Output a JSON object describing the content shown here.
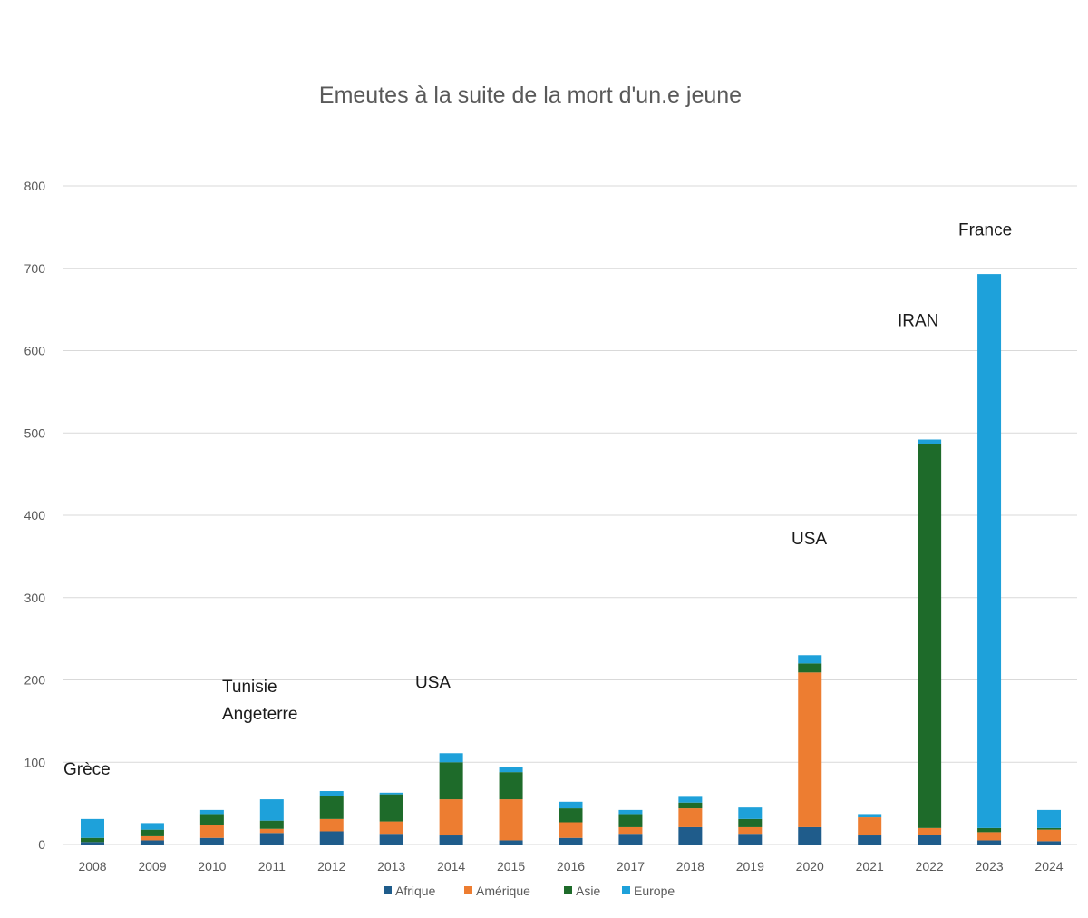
{
  "chart_data": {
    "type": "bar",
    "stacked": true,
    "title": "Emeutes à la suite de la mort d'un.e jeune",
    "xlabel": "",
    "ylabel": "",
    "ylim": [
      0,
      800
    ],
    "yticks": [
      0,
      100,
      200,
      300,
      400,
      500,
      600,
      700,
      800
    ],
    "grid": true,
    "legend_position": "bottom",
    "categories": [
      "2008",
      "2009",
      "2010",
      "2011",
      "2012",
      "2013",
      "2014",
      "2015",
      "2016",
      "2017",
      "2018",
      "2019",
      "2020",
      "2021",
      "2022",
      "2023",
      "2024"
    ],
    "series": [
      {
        "name": "Afrique",
        "color": "#1f5c8b",
        "values": [
          3,
          5,
          8,
          14,
          16,
          13,
          11,
          5,
          8,
          13,
          21,
          13,
          21,
          11,
          12,
          5,
          4
        ]
      },
      {
        "name": "Amérique",
        "color": "#ed7d31",
        "values": [
          0,
          5,
          16,
          5,
          15,
          15,
          44,
          50,
          19,
          8,
          23,
          8,
          188,
          22,
          8,
          10,
          14
        ]
      },
      {
        "name": "Asie",
        "color": "#1e6b2a",
        "values": [
          5,
          8,
          13,
          10,
          28,
          33,
          45,
          33,
          17,
          16,
          7,
          10,
          11,
          0,
          467,
          5,
          2
        ]
      },
      {
        "name": "Europe",
        "color": "#1ea1da",
        "values": [
          23,
          8,
          5,
          26,
          6,
          2,
          11,
          6,
          8,
          5,
          7,
          14,
          10,
          4,
          5,
          673,
          22
        ]
      }
    ],
    "annotations": [
      {
        "category": "2008",
        "lines": [
          "Grèce"
        ],
        "value": 85
      },
      {
        "category": "2011",
        "lines": [
          "Tunisie",
          "Angeterre"
        ],
        "value": 185
      },
      {
        "category": "2014",
        "lines": [
          "USA"
        ],
        "value": 190
      },
      {
        "category": "2020",
        "lines": [
          "USA"
        ],
        "value": 365
      },
      {
        "category": "2022",
        "lines": [
          "IRAN"
        ],
        "value": 630
      },
      {
        "category": "2023",
        "lines": [
          "France"
        ],
        "value": 740
      }
    ]
  }
}
